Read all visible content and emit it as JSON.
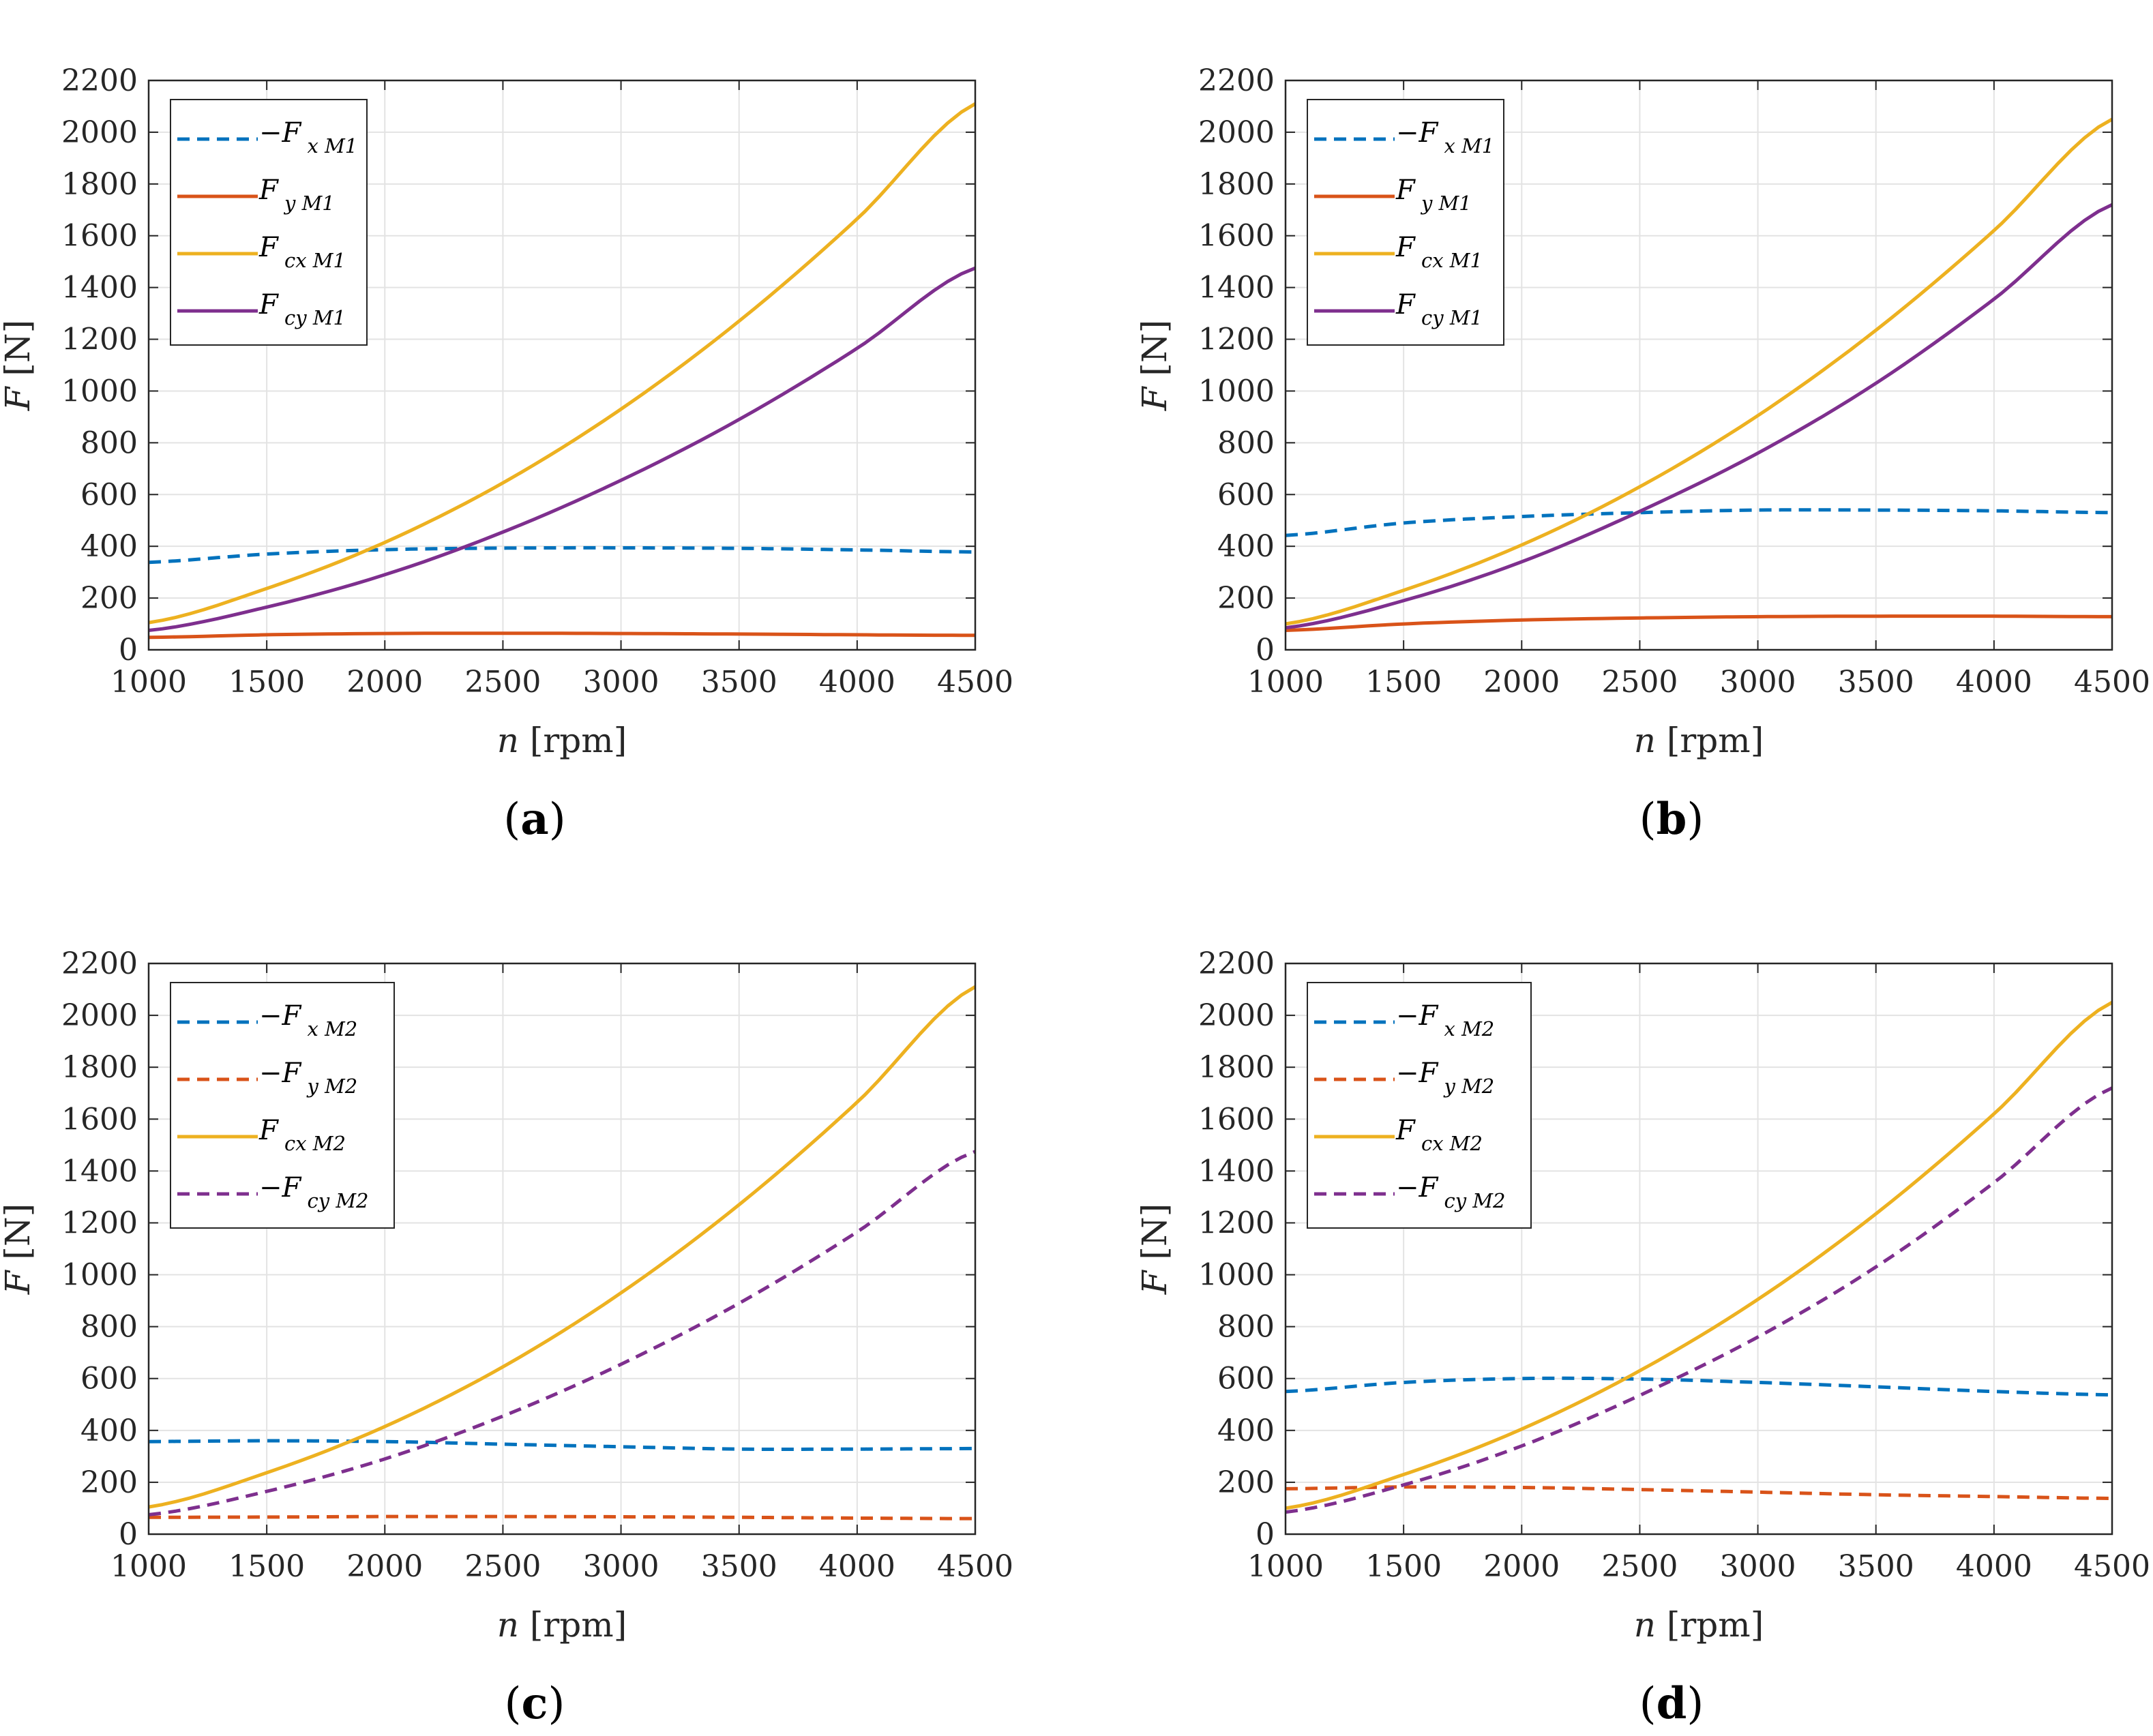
{
  "figure": {
    "panels": [
      {
        "label": "a",
        "chart_data": {
          "type": "line",
          "xlabel_var": "n",
          "xlabel_unit": "[rpm]",
          "ylabel_var": "F",
          "ylabel_unit": "[N]",
          "xlim": [
            1000,
            4500
          ],
          "ylim": [
            0,
            2200
          ],
          "xticks": [
            1000,
            1500,
            2000,
            2500,
            3000,
            3500,
            4000,
            4500
          ],
          "yticks": [
            0,
            200,
            400,
            600,
            800,
            1000,
            1200,
            1400,
            1600,
            1800,
            2000,
            2200
          ],
          "grid": true,
          "legend_position": "top-left",
          "series": [
            {
              "name": "−F x M1",
              "sign": "−",
              "base": "F",
              "sub": "x M1",
              "color": "#0072BD",
              "style": "dashed",
              "x": [
                1000,
                1500,
                2000,
                2500,
                3000,
                3500,
                4000,
                4500
              ],
              "y": [
                338,
                370,
                387,
                393,
                394,
                392,
                386,
                378
              ]
            },
            {
              "name": "F y M1",
              "sign": "",
              "base": "F",
              "sub": "y M1",
              "color": "#D95319",
              "style": "solid",
              "x": [
                1000,
                1500,
                2000,
                2500,
                3000,
                3500,
                4000,
                4500
              ],
              "y": [
                48,
                58,
                63,
                64,
                63,
                61,
                58,
                56
              ]
            },
            {
              "name": "F cx M1",
              "sign": "",
              "base": "F",
              "sub": "cx M1",
              "color": "#EDB120",
              "style": "solid",
              "x": [
                1000,
                1500,
                2000,
                2500,
                3000,
                3500,
                4000,
                4500
              ],
              "y": [
                105,
                237,
                415,
                645,
                930,
                1270,
                1665,
                2110
              ]
            },
            {
              "name": "F cy M1",
              "sign": "",
              "base": "F",
              "sub": "cy M1",
              "color": "#7E2F8E",
              "style": "solid",
              "x": [
                1000,
                1500,
                2000,
                2500,
                3000,
                3500,
                4000,
                4500
              ],
              "y": [
                75,
                165,
                290,
                455,
                655,
                890,
                1165,
                1475
              ]
            }
          ]
        }
      },
      {
        "label": "b",
        "chart_data": {
          "type": "line",
          "xlabel_var": "n",
          "xlabel_unit": "[rpm]",
          "ylabel_var": "F",
          "ylabel_unit": "[N]",
          "xlim": [
            1000,
            4500
          ],
          "ylim": [
            0,
            2200
          ],
          "xticks": [
            1000,
            1500,
            2000,
            2500,
            3000,
            3500,
            4000,
            4500
          ],
          "yticks": [
            0,
            200,
            400,
            600,
            800,
            1000,
            1200,
            1400,
            1600,
            1800,
            2000,
            2200
          ],
          "grid": true,
          "legend_position": "top-left",
          "series": [
            {
              "name": "−F x M1",
              "sign": "−",
              "base": "F",
              "sub": "x M1",
              "color": "#0072BD",
              "style": "dashed",
              "x": [
                1000,
                1500,
                2000,
                2500,
                3000,
                3500,
                4000,
                4500
              ],
              "y": [
                442,
                490,
                515,
                530,
                540,
                540,
                537,
                530
              ]
            },
            {
              "name": "F y M1",
              "sign": "",
              "base": "F",
              "sub": "y M1",
              "color": "#D95319",
              "style": "solid",
              "x": [
                1000,
                1500,
                2000,
                2500,
                3000,
                3500,
                4000,
                4500
              ],
              "y": [
                75,
                100,
                115,
                123,
                128,
                130,
                130,
                128
              ]
            },
            {
              "name": "F cx M1",
              "sign": "",
              "base": "F",
              "sub": "cx M1",
              "color": "#EDB120",
              "style": "solid",
              "x": [
                1000,
                1500,
                2000,
                2500,
                3000,
                3500,
                4000,
                4500
              ],
              "y": [
                100,
                230,
                405,
                630,
                905,
                1235,
                1620,
                2050
              ]
            },
            {
              "name": "F cy M1",
              "sign": "",
              "base": "F",
              "sub": "cy M1",
              "color": "#7E2F8E",
              "style": "solid",
              "x": [
                1000,
                1500,
                2000,
                2500,
                3000,
                3500,
                4000,
                4500
              ],
              "y": [
                85,
                190,
                340,
                535,
                760,
                1030,
                1355,
                1720
              ]
            }
          ]
        }
      },
      {
        "label": "c",
        "chart_data": {
          "type": "line",
          "xlabel_var": "n",
          "xlabel_unit": "[rpm]",
          "ylabel_var": "F",
          "ylabel_unit": "[N]",
          "xlim": [
            1000,
            4500
          ],
          "ylim": [
            0,
            2200
          ],
          "xticks": [
            1000,
            1500,
            2000,
            2500,
            3000,
            3500,
            4000,
            4500
          ],
          "yticks": [
            0,
            200,
            400,
            600,
            800,
            1000,
            1200,
            1400,
            1600,
            1800,
            2000,
            2200
          ],
          "grid": true,
          "legend_position": "top-left",
          "series": [
            {
              "name": "−F x M2",
              "sign": "−",
              "base": "F",
              "sub": "x M2",
              "color": "#0072BD",
              "style": "dashed",
              "x": [
                1000,
                1500,
                2000,
                2500,
                3000,
                3500,
                4000,
                4500
              ],
              "y": [
                357,
                360,
                357,
                347,
                337,
                328,
                328,
                330
              ]
            },
            {
              "name": "−F y M2",
              "sign": "−",
              "base": "F",
              "sub": "y M2",
              "color": "#D95319",
              "style": "dashed",
              "x": [
                1000,
                1500,
                2000,
                2500,
                3000,
                3500,
                4000,
                4500
              ],
              "y": [
                65,
                66,
                68,
                68,
                67,
                65,
                62,
                60
              ]
            },
            {
              "name": "F cx M2",
              "sign": "",
              "base": "F",
              "sub": "cx M2",
              "color": "#EDB120",
              "style": "solid",
              "x": [
                1000,
                1500,
                2000,
                2500,
                3000,
                3500,
                4000,
                4500
              ],
              "y": [
                105,
                237,
                415,
                645,
                930,
                1270,
                1665,
                2110
              ]
            },
            {
              "name": "−F cy M2",
              "sign": "−",
              "base": "F",
              "sub": "cy M2",
              "color": "#7E2F8E",
              "style": "dashed",
              "x": [
                1000,
                1500,
                2000,
                2500,
                3000,
                3500,
                4000,
                4500
              ],
              "y": [
                75,
                165,
                290,
                455,
                655,
                890,
                1165,
                1475
              ]
            }
          ]
        }
      },
      {
        "label": "d",
        "chart_data": {
          "type": "line",
          "xlabel_var": "n",
          "xlabel_unit": "[rpm]",
          "ylabel_var": "F",
          "ylabel_unit": "[N]",
          "xlim": [
            1000,
            4500
          ],
          "ylim": [
            0,
            2200
          ],
          "xticks": [
            1000,
            1500,
            2000,
            2500,
            3000,
            3500,
            4000,
            4500
          ],
          "yticks": [
            0,
            200,
            400,
            600,
            800,
            1000,
            1200,
            1400,
            1600,
            1800,
            2000,
            2200
          ],
          "grid": true,
          "legend_position": "top-left",
          "series": [
            {
              "name": "−F x M2",
              "sign": "−",
              "base": "F",
              "sub": "x M2",
              "color": "#0072BD",
              "style": "dashed",
              "x": [
                1000,
                1500,
                2000,
                2500,
                3000,
                3500,
                4000,
                4500
              ],
              "y": [
                550,
                585,
                600,
                598,
                585,
                568,
                550,
                537
              ]
            },
            {
              "name": "−F y M2",
              "sign": "−",
              "base": "F",
              "sub": "y M2",
              "color": "#D95319",
              "style": "dashed",
              "x": [
                1000,
                1500,
                2000,
                2500,
                3000,
                3500,
                4000,
                4500
              ],
              "y": [
                175,
                182,
                180,
                172,
                162,
                152,
                145,
                138
              ]
            },
            {
              "name": "F cx M2",
              "sign": "",
              "base": "F",
              "sub": "cx M2",
              "color": "#EDB120",
              "style": "solid",
              "x": [
                1000,
                1500,
                2000,
                2500,
                3000,
                3500,
                4000,
                4500
              ],
              "y": [
                100,
                230,
                405,
                630,
                905,
                1235,
                1620,
                2050
              ]
            },
            {
              "name": "−F cy M2",
              "sign": "−",
              "base": "F",
              "sub": "cy M2",
              "color": "#7E2F8E",
              "style": "dashed",
              "x": [
                1000,
                1500,
                2000,
                2500,
                3000,
                3500,
                4000,
                4500
              ],
              "y": [
                85,
                190,
                340,
                535,
                760,
                1030,
                1355,
                1720
              ]
            }
          ]
        }
      }
    ]
  }
}
